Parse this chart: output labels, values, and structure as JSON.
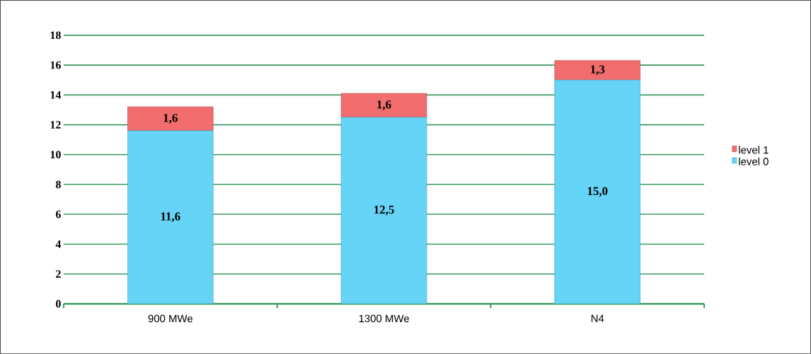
{
  "chart_data": {
    "type": "bar",
    "stacked": true,
    "categories": [
      "900 MWe",
      "1300 MWe",
      "N4"
    ],
    "series": [
      {
        "name": "level 0",
        "color": "#66d4f7",
        "values": [
          11.6,
          12.5,
          15.0
        ],
        "value_labels": [
          "11,6",
          "12,5",
          "15,0"
        ]
      },
      {
        "name": "level 1",
        "color": "#f26d6d",
        "values": [
          1.6,
          1.6,
          1.3
        ],
        "value_labels": [
          "1,6",
          "1,6",
          "1,3"
        ]
      }
    ],
    "ylim": [
      0,
      18
    ],
    "yticks": [
      0,
      2,
      4,
      6,
      8,
      10,
      12,
      14,
      16,
      18
    ],
    "grid": "y",
    "legend": "right"
  }
}
